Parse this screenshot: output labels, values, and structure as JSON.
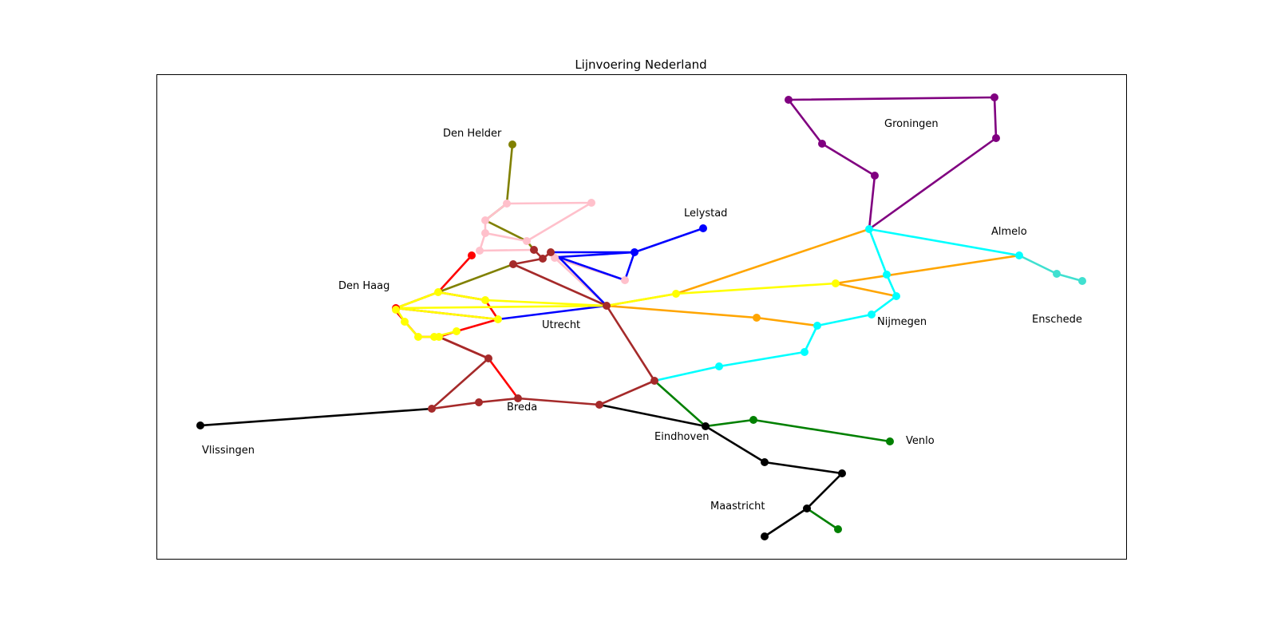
{
  "title": "Lijnvoering Nederland",
  "cities": [
    {
      "id": "den-helder",
      "label": "Den Helder"
    },
    {
      "id": "groningen",
      "label": "Groningen"
    },
    {
      "id": "lelystad",
      "label": "Lelystad"
    },
    {
      "id": "almelo",
      "label": "Almelo"
    },
    {
      "id": "den-haag",
      "label": "Den Haag"
    },
    {
      "id": "utrecht",
      "label": "Utrecht"
    },
    {
      "id": "nijmegen",
      "label": "Nijmegen"
    },
    {
      "id": "enschede",
      "label": "Enschede"
    },
    {
      "id": "breda",
      "label": "Breda"
    },
    {
      "id": "vlissingen",
      "label": "Vlissingen"
    },
    {
      "id": "eindhoven",
      "label": "Eindhoven"
    },
    {
      "id": "venlo",
      "label": "Venlo"
    },
    {
      "id": "maastricht",
      "label": "Maastricht"
    }
  ],
  "routes": [
    {
      "id": "purple",
      "color": "#800080"
    },
    {
      "id": "olive",
      "color": "#808000"
    },
    {
      "id": "pink",
      "color": "#ffc0cb"
    },
    {
      "id": "blue",
      "color": "#0000ff"
    },
    {
      "id": "red",
      "color": "#ff0000"
    },
    {
      "id": "brown",
      "color": "#a52a2a"
    },
    {
      "id": "orange",
      "color": "#ffa500"
    },
    {
      "id": "yellow",
      "color": "#ffff00"
    },
    {
      "id": "cyan",
      "color": "#00ffff"
    },
    {
      "id": "turquoise",
      "color": "#40e0d0"
    },
    {
      "id": "green",
      "color": "#008000"
    },
    {
      "id": "black",
      "color": "#000000"
    }
  ]
}
